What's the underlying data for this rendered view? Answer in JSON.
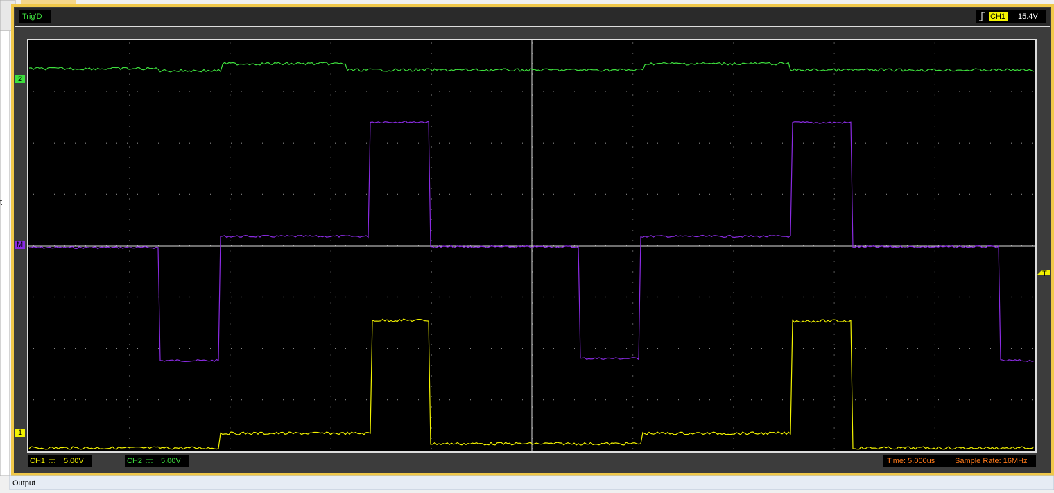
{
  "side_text": "t",
  "header": {
    "trig": "Trig'D",
    "channel": "CH1",
    "level": "15.4V"
  },
  "markers": {
    "ch2": "2",
    "math": "M",
    "ch1": "1",
    "trigger": "T"
  },
  "footer": {
    "ch1_label": "CH1",
    "ch1_scale": "5.00V",
    "ch2_label": "CH2",
    "ch2_scale": "5.00V",
    "time": "Time: 5.000us",
    "sample_rate": "Sample Rate: 16MHz"
  },
  "output": "Output"
}
